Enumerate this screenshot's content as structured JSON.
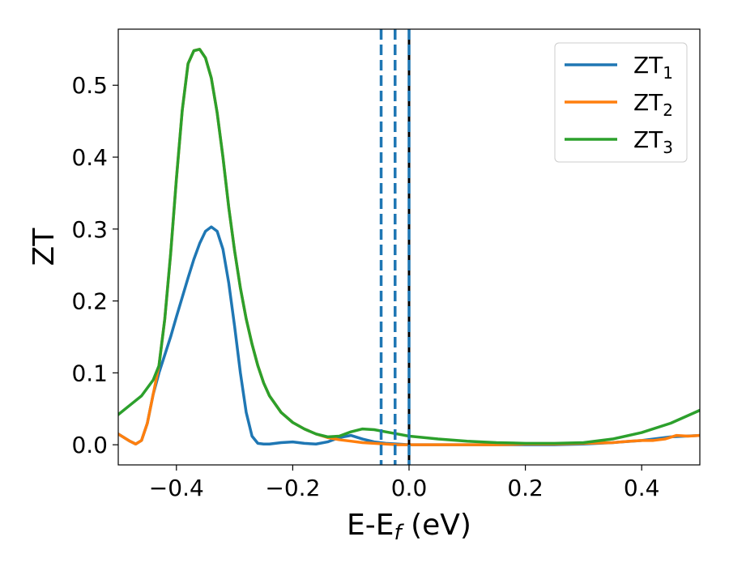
{
  "chart_data": {
    "type": "line",
    "xlabel": "E-E",
    "xlabel_sub": "f",
    "xlabel_unit": " (eV)",
    "ylabel": "ZT",
    "xlim": [
      -0.5,
      0.5
    ],
    "ylim": [
      -0.028,
      0.578
    ],
    "xticks": [
      -0.4,
      -0.2,
      0.0,
      0.2,
      0.4
    ],
    "xtick_labels": [
      "−0.4",
      "−0.2",
      "0.0",
      "0.2",
      "0.4"
    ],
    "yticks": [
      0.0,
      0.1,
      0.2,
      0.3,
      0.4,
      0.5
    ],
    "ytick_labels": [
      "0.0",
      "0.1",
      "0.2",
      "0.3",
      "0.4",
      "0.5"
    ],
    "legend_position": "top-right",
    "grid": false,
    "vlines": [
      {
        "x": -0.048,
        "style": "dashed",
        "color": "#1f77b4"
      },
      {
        "x": -0.024,
        "style": "dashed",
        "color": "#1f77b4"
      },
      {
        "x": 0.0,
        "style": "solid",
        "color": "#000000"
      },
      {
        "x": 0.0,
        "style": "dashed",
        "color": "#1f77b4"
      }
    ],
    "series": [
      {
        "name": "ZT",
        "name_sub": "1",
        "color": "#1f77b4",
        "x": [
          -0.5,
          -0.48,
          -0.47,
          -0.46,
          -0.45,
          -0.44,
          -0.43,
          -0.42,
          -0.41,
          -0.4,
          -0.39,
          -0.38,
          -0.37,
          -0.36,
          -0.35,
          -0.34,
          -0.33,
          -0.32,
          -0.31,
          -0.3,
          -0.29,
          -0.28,
          -0.27,
          -0.26,
          -0.25,
          -0.24,
          -0.22,
          -0.2,
          -0.18,
          -0.16,
          -0.14,
          -0.12,
          -0.1,
          -0.08,
          -0.06,
          -0.04,
          -0.02,
          0.0,
          0.05,
          0.1,
          0.15,
          0.2,
          0.25,
          0.3,
          0.35,
          0.4,
          0.45,
          0.5
        ],
        "y": [
          0.015,
          0.005,
          0.001,
          0.006,
          0.03,
          0.07,
          0.1,
          0.125,
          0.15,
          0.178,
          0.205,
          0.232,
          0.258,
          0.28,
          0.297,
          0.303,
          0.297,
          0.272,
          0.225,
          0.165,
          0.1,
          0.045,
          0.012,
          0.002,
          0.001,
          0.001,
          0.003,
          0.004,
          0.002,
          0.001,
          0.004,
          0.01,
          0.013,
          0.008,
          0.004,
          0.002,
          0.001,
          0.0,
          0.0,
          0.0,
          0.0,
          0.0,
          0.0,
          0.001,
          0.003,
          0.006,
          0.011,
          0.013
        ]
      },
      {
        "name": "ZT",
        "name_sub": "2",
        "color": "#ff7f0e",
        "x": [
          -0.5,
          -0.48,
          -0.47,
          -0.46,
          -0.45,
          -0.44,
          -0.43,
          -0.42,
          -0.41,
          -0.4,
          -0.39,
          -0.38,
          -0.37,
          -0.36,
          -0.35,
          -0.34,
          -0.33,
          -0.32,
          -0.31,
          -0.3,
          -0.29,
          -0.28,
          -0.27,
          -0.26,
          -0.25,
          -0.24,
          -0.22,
          -0.2,
          -0.18,
          -0.16,
          -0.14,
          -0.12,
          -0.1,
          -0.08,
          -0.06,
          -0.04,
          -0.02,
          0.0,
          0.05,
          0.1,
          0.15,
          0.2,
          0.25,
          0.3,
          0.35,
          0.38,
          0.4,
          0.42,
          0.44,
          0.46,
          0.48,
          0.5
        ],
        "y": [
          0.015,
          0.005,
          0.001,
          0.006,
          0.03,
          0.07,
          0.11,
          0.175,
          0.265,
          0.37,
          0.465,
          0.53,
          0.548,
          0.55,
          0.538,
          0.51,
          0.462,
          0.4,
          0.33,
          0.27,
          0.218,
          0.175,
          0.14,
          0.11,
          0.086,
          0.068,
          0.045,
          0.031,
          0.022,
          0.015,
          0.01,
          0.007,
          0.005,
          0.003,
          0.002,
          0.001,
          0.0,
          0.0,
          0.0,
          0.0,
          0.0,
          0.001,
          0.001,
          0.002,
          0.003,
          0.005,
          0.006,
          0.006,
          0.008,
          0.013,
          0.012,
          0.013
        ]
      },
      {
        "name": "ZT",
        "name_sub": "3",
        "color": "#2ca02c",
        "x": [
          -0.5,
          -0.48,
          -0.46,
          -0.44,
          -0.43,
          -0.42,
          -0.41,
          -0.4,
          -0.39,
          -0.38,
          -0.37,
          -0.36,
          -0.35,
          -0.34,
          -0.33,
          -0.32,
          -0.31,
          -0.3,
          -0.29,
          -0.28,
          -0.27,
          -0.26,
          -0.25,
          -0.24,
          -0.22,
          -0.2,
          -0.18,
          -0.16,
          -0.14,
          -0.12,
          -0.1,
          -0.08,
          -0.06,
          -0.04,
          -0.02,
          0.0,
          0.05,
          0.1,
          0.15,
          0.2,
          0.25,
          0.3,
          0.35,
          0.4,
          0.45,
          0.5
        ],
        "y": [
          0.042,
          0.055,
          0.068,
          0.09,
          0.11,
          0.175,
          0.265,
          0.37,
          0.465,
          0.53,
          0.548,
          0.55,
          0.538,
          0.51,
          0.462,
          0.4,
          0.33,
          0.27,
          0.218,
          0.175,
          0.14,
          0.11,
          0.086,
          0.068,
          0.045,
          0.031,
          0.022,
          0.015,
          0.011,
          0.012,
          0.018,
          0.022,
          0.021,
          0.018,
          0.015,
          0.012,
          0.008,
          0.005,
          0.003,
          0.002,
          0.002,
          0.003,
          0.008,
          0.017,
          0.03,
          0.048
        ]
      }
    ]
  }
}
